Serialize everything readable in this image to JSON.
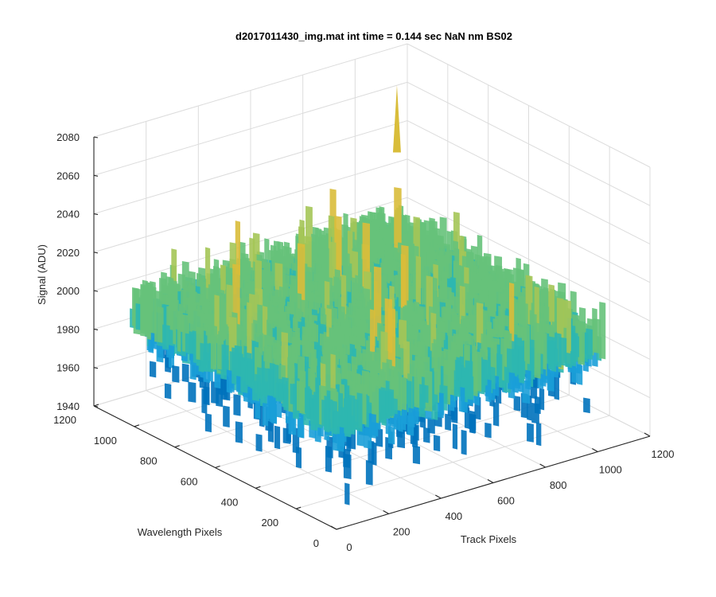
{
  "chart_data": {
    "type": "surface",
    "title": "d2017011430_img.mat int time = 0.144 sec  NaN nm BS02",
    "xlabel": "Track Pixels",
    "ylabel": "Wavelength Pixels",
    "zlabel": "Signal (ADU)",
    "xlim": [
      0,
      1200
    ],
    "ylim": [
      0,
      1200
    ],
    "zlim": [
      1940,
      2080
    ],
    "xticks": [
      "0",
      "200",
      "400",
      "600",
      "800",
      "1000",
      "1200"
    ],
    "yticks": [
      "0",
      "200",
      "400",
      "600",
      "800",
      "1000",
      "1200"
    ],
    "zticks": [
      "1940",
      "1960",
      "1980",
      "2000",
      "2020",
      "2040",
      "2060",
      "2080"
    ],
    "grid": true,
    "colormap": "parula",
    "colors": [
      "#0072bd",
      "#1a9fd8",
      "#2db7b0",
      "#66c27a",
      "#a4c556",
      "#d9bd3a"
    ],
    "data_range": {
      "x": [
        0,
        1024
      ],
      "y": [
        0,
        1024
      ],
      "z": [
        1945,
        2075
      ]
    },
    "mean_signal": 2000,
    "peak_signal": 2075,
    "min_signal": 1945
  }
}
